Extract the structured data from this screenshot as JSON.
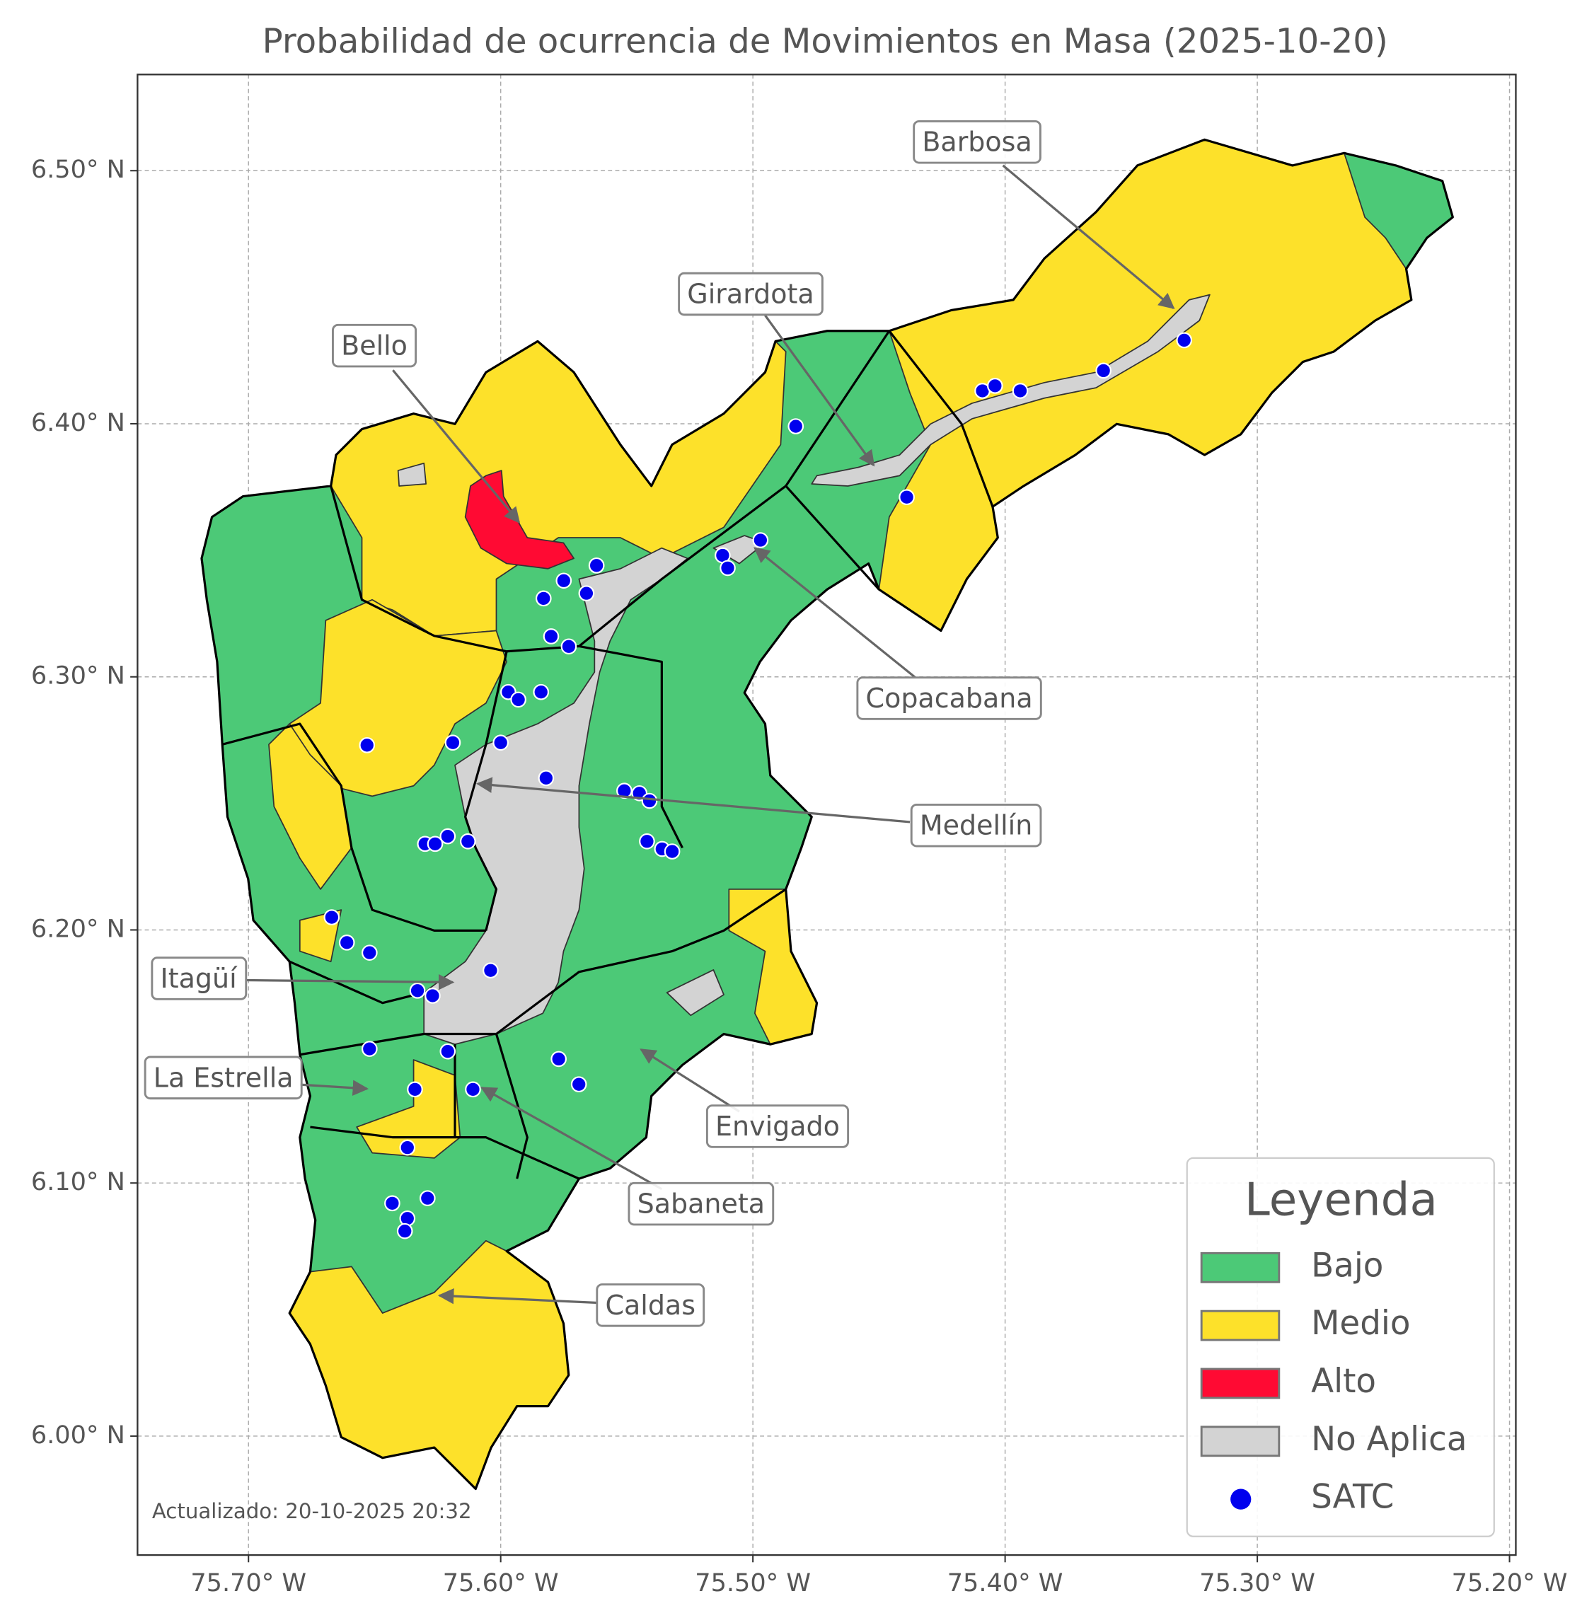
{
  "chart_data": {
    "type": "map",
    "title": "Probabilidad de ocurrencia de Movimientos en Masa (2025-10-20)",
    "xlim": [
      -75.744,
      -75.1975
    ],
    "ylim": [
      5.953,
      6.538
    ],
    "xticks": [
      {
        "value": -75.7,
        "label": "75.70° W"
      },
      {
        "value": -75.6,
        "label": "75.60° W"
      },
      {
        "value": -75.5,
        "label": "75.50° W"
      },
      {
        "value": -75.4,
        "label": "75.40° W"
      },
      {
        "value": -75.3,
        "label": "75.30° W"
      },
      {
        "value": -75.2,
        "label": "75.20° W"
      }
    ],
    "yticks": [
      {
        "value": 6.5,
        "label": "6.50° N"
      },
      {
        "value": 6.4,
        "label": "6.40° N"
      },
      {
        "value": 6.3,
        "label": "6.30° N"
      },
      {
        "value": 6.2,
        "label": "6.20° N"
      },
      {
        "value": 6.1,
        "label": "6.10° N"
      },
      {
        "value": 6.0,
        "label": "6.00° N"
      }
    ],
    "grid": true,
    "annotations": [
      "Barbosa",
      "Girardota",
      "Bello",
      "Copacabana",
      "Medellín",
      "Itagüí",
      "La Estrella",
      "Envigado",
      "Sabaneta",
      "Caldas"
    ],
    "legend": {
      "title": "Leyenda",
      "position": "lower right",
      "items": [
        {
          "label": "Bajo",
          "color": "#4cc977"
        },
        {
          "label": "Medio",
          "color": "#fde12a"
        },
        {
          "label": "Alto",
          "color": "#ff0a33"
        },
        {
          "label": "No Aplica",
          "color": "#d3d3d3"
        },
        {
          "label": "SATC",
          "color": "#0000ee"
        }
      ]
    },
    "note": "Actualizado: 20-10-2025 20:32",
    "stations": {
      "lon": [
        -75.483,
        -75.409,
        -75.404,
        -75.394,
        -75.361,
        -75.329,
        -75.439,
        -75.497,
        -75.512,
        -75.51,
        -75.562,
        -75.575,
        -75.566,
        -75.583,
        -75.58,
        -75.573,
        -75.597,
        -75.593,
        -75.584,
        -75.653,
        -75.619,
        -75.6,
        -75.582,
        -75.551,
        -75.545,
        -75.541,
        -75.542,
        -75.536,
        -75.532,
        -75.63,
        -75.626,
        -75.621,
        -75.613,
        -75.667,
        -75.661,
        -75.652,
        -75.604,
        -75.633,
        -75.627,
        -75.652,
        -75.621,
        -75.577,
        -75.569,
        -75.611,
        -75.634,
        -75.637,
        -75.643,
        -75.629,
        -75.637,
        -75.638
      ],
      "lat": [
        6.399,
        6.413,
        6.415,
        6.413,
        6.421,
        6.433,
        6.371,
        6.354,
        6.348,
        6.343,
        6.344,
        6.338,
        6.333,
        6.331,
        6.316,
        6.312,
        6.294,
        6.291,
        6.294,
        6.273,
        6.274,
        6.274,
        6.26,
        6.255,
        6.254,
        6.251,
        6.235,
        6.232,
        6.231,
        6.234,
        6.234,
        6.237,
        6.235,
        6.205,
        6.195,
        6.191,
        6.184,
        6.176,
        6.174,
        6.153,
        6.152,
        6.149,
        6.139,
        6.137,
        6.137,
        6.114,
        6.092,
        6.094,
        6.086,
        6.081
      ]
    }
  }
}
